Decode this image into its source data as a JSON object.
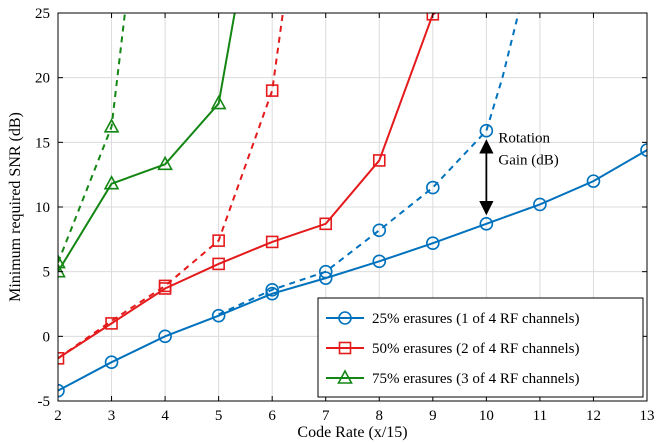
{
  "chart_data": {
    "type": "line",
    "title": "",
    "xlabel": "Code Rate (x/15)",
    "ylabel": "Minimum required SNR (dB)",
    "xlim": [
      2,
      13
    ],
    "ylim": [
      -5,
      25
    ],
    "xticks": [
      2,
      3,
      4,
      5,
      6,
      7,
      8,
      9,
      10,
      11,
      12,
      13
    ],
    "yticks": [
      -5,
      0,
      5,
      10,
      15,
      20,
      25
    ],
    "grid": true,
    "legend_position": "bottom-right",
    "series": [
      {
        "name": "25% erasures (1 of 4 RF channels)",
        "color": "#0072BD",
        "marker": "circle",
        "solid": {
          "x": [
            2,
            3,
            4,
            5,
            6,
            7,
            8,
            9,
            10,
            11,
            12,
            13
          ],
          "y": [
            -4.2,
            -2.0,
            0.0,
            1.6,
            3.3,
            4.5,
            5.8,
            7.2,
            8.7,
            10.2,
            12.0,
            14.4
          ]
        },
        "dashed": {
          "x": [
            5,
            6,
            7,
            8,
            9,
            10,
            10.3,
            10.6
          ],
          "y": [
            1.7,
            3.6,
            5.0,
            8.2,
            11.5,
            15.9,
            20.0,
            25.0
          ],
          "marker_x": [
            6,
            7,
            8,
            9,
            10
          ]
        }
      },
      {
        "name": "50% erasures (2 of 4 RF channels)",
        "color": "#E41A1C",
        "marker": "square",
        "solid": {
          "x": [
            2,
            3,
            4,
            5,
            6,
            7,
            8,
            9,
            9.05
          ],
          "y": [
            -1.7,
            1.0,
            3.7,
            5.6,
            7.3,
            8.7,
            13.6,
            24.9,
            25.0
          ]
        },
        "dashed": {
          "x": [
            2,
            3,
            4,
            5,
            6,
            6.2
          ],
          "y": [
            -1.7,
            1.2,
            3.9,
            7.4,
            19.0,
            25.0
          ],
          "marker_x": [
            4,
            5,
            6
          ]
        }
      },
      {
        "name": "75% erasures (3 of 4 RF channels)",
        "color": "#138613",
        "marker": "triangle",
        "solid": {
          "x": [
            2,
            3,
            4,
            5,
            5.3
          ],
          "y": [
            5.0,
            11.8,
            13.3,
            18.0,
            25.0
          ]
        },
        "dashed": {
          "x": [
            2,
            3,
            3.25
          ],
          "y": [
            5.7,
            16.2,
            25.0
          ],
          "marker_x": [
            2,
            3
          ]
        }
      }
    ],
    "annotation": {
      "lines": [
        "Rotation",
        "Gain (dB)"
      ],
      "arrow_x": 10,
      "arrow_from": 15.9,
      "arrow_to": 8.7
    }
  }
}
